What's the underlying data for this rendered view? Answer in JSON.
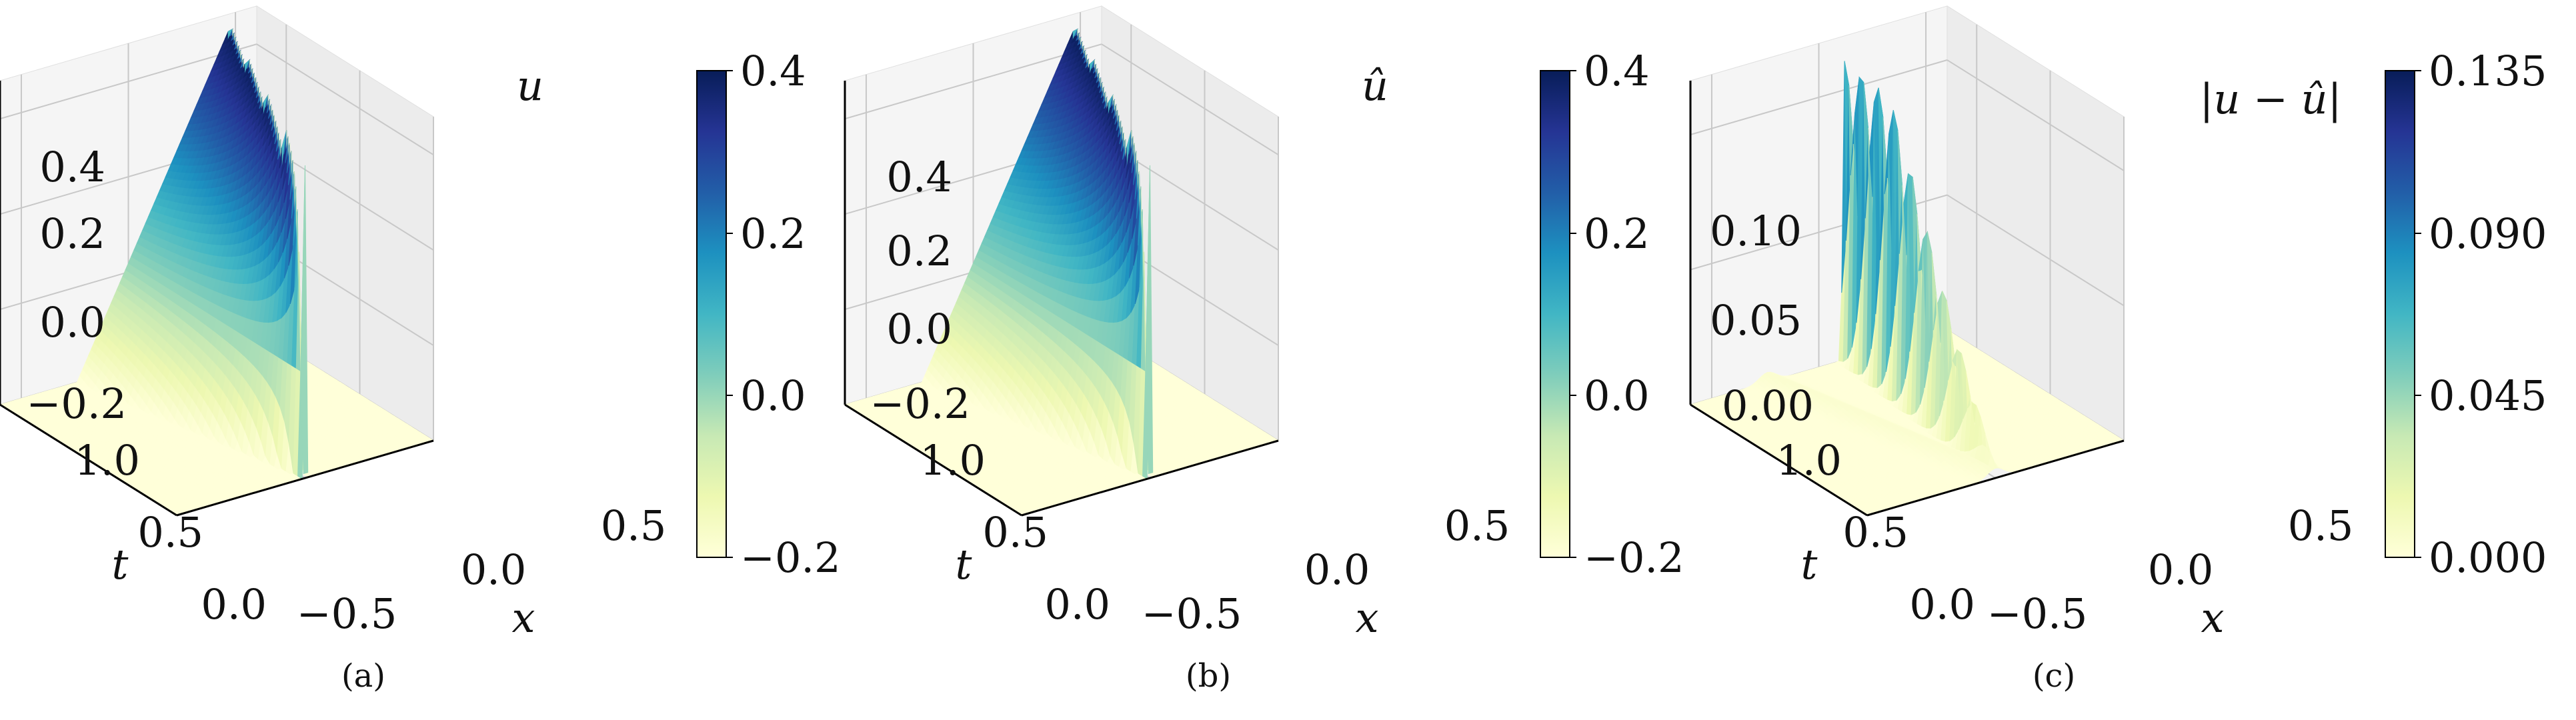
{
  "colormap": {
    "name": "YlGnBu",
    "stops": [
      "#ffffd9",
      "#edf8b1",
      "#c7e9b4",
      "#7fcdbb",
      "#41b6c4",
      "#1d91c0",
      "#225ea8",
      "#253494",
      "#081d58"
    ]
  },
  "chart_data": [
    {
      "type": "surface3d",
      "panel_label": "(a)",
      "title": "u",
      "xlabel": "x",
      "ylabel": "t",
      "zlabel": "",
      "x_ticks": [
        "−0.5",
        "0.0",
        "0.5"
      ],
      "y_ticks": [
        "0.0",
        "0.5",
        "1.0"
      ],
      "z_ticks": [
        "−0.2",
        "0.0",
        "0.2",
        "0.4"
      ],
      "xlim": [
        -0.6,
        0.6
      ],
      "ylim": [
        0,
        1.2
      ],
      "zlim": [
        -0.2,
        0.4
      ],
      "colorbar": {
        "ticks": [
          "−0.2",
          "0.0",
          "0.2",
          "0.4"
        ],
        "range": [
          -0.2,
          0.4
        ]
      },
      "field": "exact"
    },
    {
      "type": "surface3d",
      "panel_label": "(b)",
      "title": "û",
      "xlabel": "x",
      "ylabel": "t",
      "zlabel": "",
      "x_ticks": [
        "−0.5",
        "0.0",
        "0.5"
      ],
      "y_ticks": [
        "0.0",
        "0.5",
        "1.0"
      ],
      "z_ticks": [
        "−0.2",
        "0.0",
        "0.2",
        "0.4"
      ],
      "xlim": [
        -0.6,
        0.6
      ],
      "ylim": [
        0,
        1.2
      ],
      "zlim": [
        -0.2,
        0.4
      ],
      "colorbar": {
        "ticks": [
          "−0.2",
          "0.0",
          "0.2",
          "0.4"
        ],
        "range": [
          -0.2,
          0.4
        ]
      },
      "field": "predicted"
    },
    {
      "type": "surface3d",
      "panel_label": "(c)",
      "title": "|u − û|",
      "xlabel": "x",
      "ylabel": "t",
      "zlabel": "",
      "x_ticks": [
        "−0.5",
        "0.0",
        "0.5"
      ],
      "y_ticks": [
        "0.0",
        "0.5",
        "1.0"
      ],
      "z_ticks": [
        "0.00",
        "0.05",
        "0.10"
      ],
      "xlim": [
        -0.6,
        0.6
      ],
      "ylim": [
        0,
        1.2
      ],
      "zlim": [
        0,
        0.135
      ],
      "colorbar": {
        "ticks": [
          "0.000",
          "0.045",
          "0.090",
          "0.135"
        ],
        "range": [
          0,
          0.135
        ]
      },
      "field": "error"
    }
  ]
}
